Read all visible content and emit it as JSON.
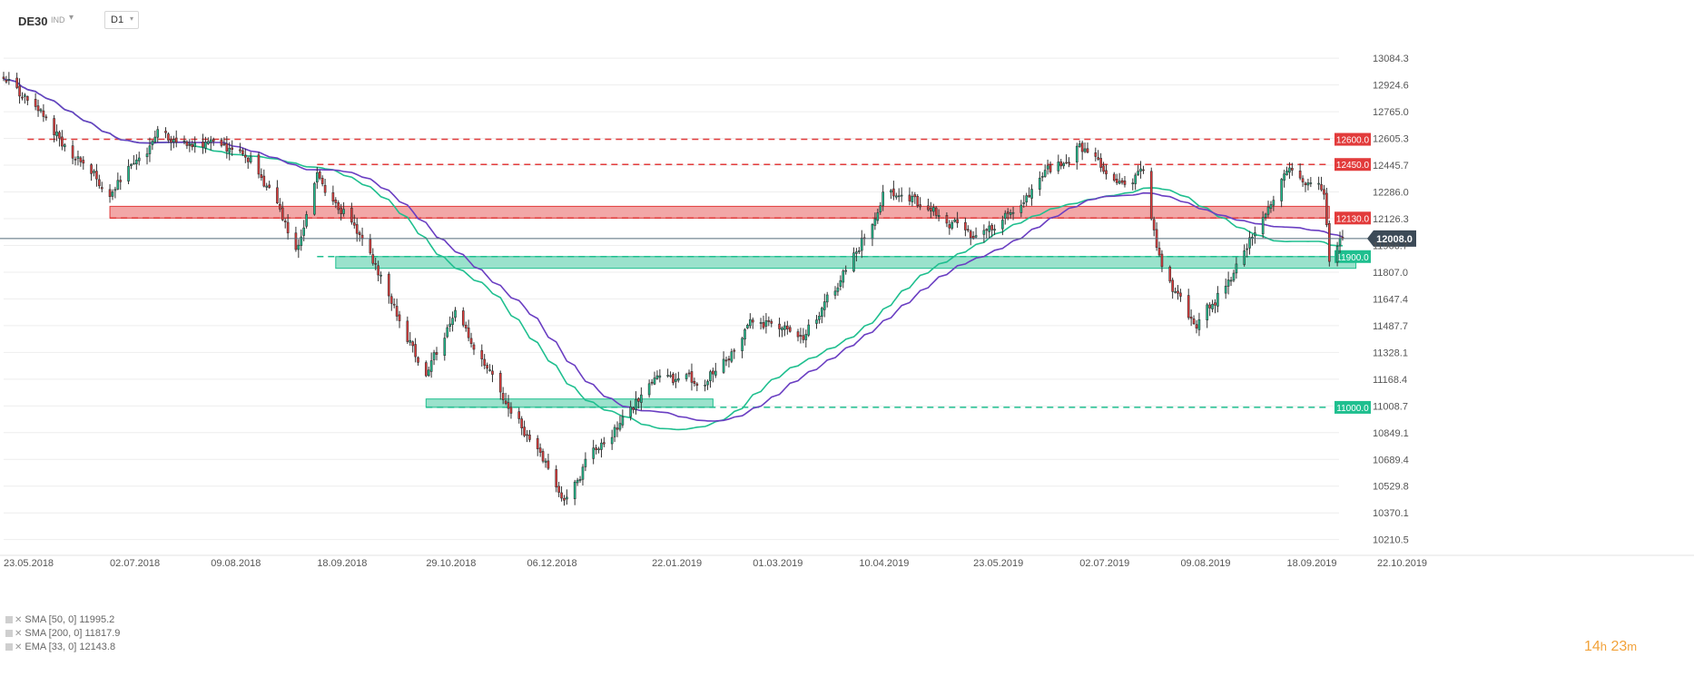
{
  "header": {
    "symbol": "DE30",
    "symbol_type": "IND",
    "timeframe": "D1"
  },
  "indicators": [
    {
      "label": "SMA [50, 0]",
      "value": "11995.2",
      "color": "#1fbf8f"
    },
    {
      "label": "SMA [200, 0]",
      "value": "11817.9",
      "color": "#6a3ec2"
    },
    {
      "label": "EMA [33, 0]",
      "value": "12143.8",
      "color": "#1fbf8f"
    }
  ],
  "countdown": {
    "hours": "14",
    "hours_unit": "h",
    "minutes": "23",
    "minutes_unit": "m"
  },
  "chart_data": {
    "type": "candlestick",
    "instrument": "DE30",
    "timeframe": "D1",
    "current_price": 12008.0,
    "current_price_label": "12008.0",
    "ylim": [
      10160,
      13280
    ],
    "y_ticks": [
      "13084.3",
      "12924.6",
      "12765.0",
      "12605.3",
      "12445.7",
      "12286.0",
      "12126.3",
      "11966.7",
      "11807.0",
      "11647.4",
      "11487.7",
      "11328.1",
      "11168.4",
      "11008.7",
      "10849.1",
      "10689.4",
      "10529.8",
      "10370.1",
      "10210.5"
    ],
    "x_ticks": [
      "23.05.2018",
      "02.07.2018",
      "09.08.2018",
      "18.09.2018",
      "29.10.2018",
      "06.12.2018",
      "22.01.2019",
      "01.03.2019",
      "10.04.2019",
      "23.05.2019",
      "02.07.2019",
      "09.08.2019",
      "18.09.2019",
      "22.10.2019"
    ],
    "anchors": [
      [
        "23.05.2018",
        12980
      ],
      [
        "12.06.2018",
        12620
      ],
      [
        "02.07.2018",
        12270
      ],
      [
        "20.07.2018",
        12620
      ],
      [
        "09.08.2018",
        12560
      ],
      [
        "25.08.2018",
        12470
      ],
      [
        "10.09.2018",
        11950
      ],
      [
        "18.09.2018",
        12380
      ],
      [
        "05.10.2018",
        12020
      ],
      [
        "20.10.2018",
        11500
      ],
      [
        "29.10.2018",
        11180
      ],
      [
        "09.11.2018",
        11550
      ],
      [
        "20.11.2018",
        11220
      ],
      [
        "06.12.2018",
        10850
      ],
      [
        "20.12.2018",
        10430
      ],
      [
        "27.12.2018",
        10640
      ],
      [
        "10.01.2019",
        10900
      ],
      [
        "22.01.2019",
        11150
      ],
      [
        "10.02.2019",
        11150
      ],
      [
        "01.03.2019",
        11520
      ],
      [
        "20.03.2019",
        11450
      ],
      [
        "01.04.2019",
        11700
      ],
      [
        "10.04.2019",
        11980
      ],
      [
        "20.04.2019",
        12310
      ],
      [
        "06.05.2019",
        12180
      ],
      [
        "23.05.2019",
        12000
      ],
      [
        "15.06.2019",
        12300
      ],
      [
        "02.07.2019",
        12580
      ],
      [
        "20.07.2019",
        12320
      ],
      [
        "26.07.2019",
        12400
      ],
      [
        "01.08.2019",
        11890
      ],
      [
        "09.08.2019",
        11610
      ],
      [
        "15.08.2019",
        11450
      ],
      [
        "01.09.2019",
        11900
      ],
      [
        "18.09.2019",
        12400
      ],
      [
        "02.10.2019",
        12280
      ],
      [
        "04.10.2019",
        11880
      ],
      [
        "09.10.2019",
        12008
      ]
    ],
    "indicators": [
      {
        "name": "SMA [50, 0]",
        "type": "sma",
        "period": 50,
        "color": "#1fbf8f"
      },
      {
        "name": "SMA [200, 0]",
        "type": "sma",
        "period": 200,
        "color": "#6a3ec2"
      }
    ],
    "levels": [
      {
        "value": 12600.0,
        "label": "12600.0",
        "color": "#e23b3b",
        "from": "01.06.2018"
      },
      {
        "value": 12450.0,
        "label": "12450.0",
        "color": "#e23b3b",
        "from": "18.09.2018"
      },
      {
        "value": 12130.0,
        "label": "12130.0",
        "color": "#e23b3b",
        "from": "02.07.2018"
      },
      {
        "value": 11900.0,
        "label": "11900.0",
        "color": "#1fbf8f",
        "from": "18.09.2018"
      },
      {
        "value": 11000.0,
        "label": "11000.0",
        "color": "#1fbf8f",
        "from": "29.10.2018"
      }
    ],
    "zones": [
      {
        "from": "02.07.2018",
        "to": "04.10.2019",
        "low": 12130,
        "high": 12200,
        "color": "#e23b3b"
      },
      {
        "from": "25.09.2018",
        "to": "14.10.2019",
        "low": 11830,
        "high": 11900,
        "color": "#1fbf8f"
      },
      {
        "from": "29.10.2018",
        "to": "14.02.2019",
        "low": 11000,
        "high": 11050,
        "color": "#1fbf8f"
      }
    ],
    "colors": {
      "up": "#1fbf8f",
      "down": "#e23b3b",
      "wick": "#333333",
      "grid": "#eeeeee"
    }
  }
}
